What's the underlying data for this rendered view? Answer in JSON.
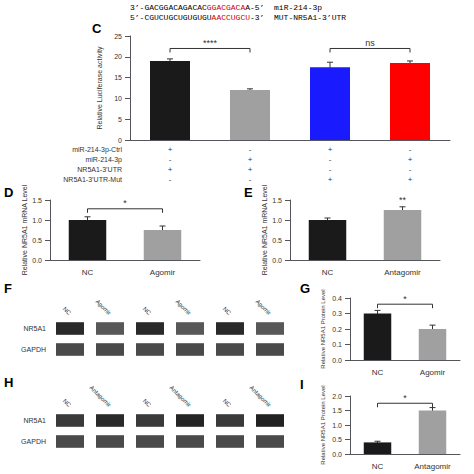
{
  "chart_data": [
    {
      "type": "bar",
      "title": "C",
      "ylabel": "Relative Luciferase activity",
      "categories": [
        null,
        null,
        null,
        null
      ],
      "values": [
        19.0,
        12.0,
        17.5,
        18.5
      ],
      "errors": [
        0.5,
        0.3,
        1.2,
        0.5
      ],
      "colors": [
        "#1a1a1a",
        "#a0a0a0",
        "#1a1aff",
        "#ff0000"
      ],
      "ylim": [
        0,
        25
      ],
      "yticks": [
        0,
        5,
        10,
        15,
        20,
        25
      ],
      "grid": false,
      "tick_labels": "y",
      "annotations": [
        {
          "text": "****",
          "from": 0,
          "to": 1,
          "y": 22.0
        },
        {
          "text": "ns",
          "from": 2,
          "to": 3,
          "y": 22.0
        }
      ],
      "table_rows": [
        [
          "miR-214-3p-Ctrl",
          "+",
          "-",
          "+",
          "-"
        ],
        [
          "miR-214-3p",
          "-",
          "+",
          "-",
          "+"
        ],
        [
          "NR5A1-3’UTR",
          "+",
          "+",
          "-",
          "-"
        ],
        [
          "NR5A1-3’UTR-Mut",
          "-",
          "-",
          "+",
          "+"
        ]
      ],
      "sequence_lines": [
        [
          {
            "text": "3’-GACGGACAGACAC",
            "color": "#000000"
          },
          {
            "text": "GGACGACA",
            "color": "#cc0000"
          },
          {
            "text": "A-5’  miR-214-3p",
            "color": "#000000"
          }
        ],
        [
          {
            "text": "5’-CGUCUGCUGUGUGU",
            "color": "#000000"
          },
          {
            "text": "AACCUGCU",
            "color": "#cc0000"
          },
          {
            "text": "-3’  MUT-NR5A1-3’UTR",
            "color": "#000000"
          }
        ]
      ]
    },
    {
      "type": "bar",
      "title": "D",
      "ylabel": "Relative NR5A1 mRNA Level",
      "categories": [
        "NC",
        "Agomir"
      ],
      "values": [
        1.0,
        0.75
      ],
      "errors": [
        0.08,
        0.1
      ],
      "colors": [
        "#1a1a1a",
        "#a0a0a0"
      ],
      "ylim": [
        0,
        1.5
      ],
      "yticks": [
        {
          "value": 0.0,
          "label": "0.0"
        },
        0.5,
        {
          "value": 1.0,
          "label": "1.0"
        },
        1.5
      ],
      "grid": false,
      "annotations": [
        {
          "text": "*",
          "from": 0,
          "to": 1,
          "y": 1.28
        }
      ]
    },
    {
      "type": "bar",
      "title": "E",
      "ylabel": "Relative NR5A1 mRNA Level",
      "categories": [
        "NC",
        "Antagomir"
      ],
      "values": [
        1.0,
        1.25
      ],
      "errors": [
        0.05,
        0.08
      ],
      "colors": [
        "#1a1a1a",
        "#a0a0a0"
      ],
      "ylim": [
        0,
        1.5
      ],
      "yticks": [
        {
          "value": 0.0,
          "label": "0.0"
        },
        0.5,
        {
          "value": 1.0,
          "label": "1.0"
        },
        1.5
      ],
      "grid": false,
      "annotations": [
        {
          "text": "**",
          "bar": 1
        }
      ]
    },
    {
      "type": "blot",
      "title": "F",
      "categories": [
        "NC",
        "Agomir",
        "NC",
        "Agomir",
        "NC",
        "Agomir"
      ],
      "series": [
        {
          "name": "NR5A1",
          "colors": [
            "#2a2a2a",
            "#585858",
            "#2a2a2a",
            "#585858",
            "#2a2a2a",
            "#585858"
          ]
        },
        {
          "name": "GAPDH",
          "colors": [
            "#4a4a4a",
            "#4a4a4a",
            "#4a4a4a",
            "#4a4a4a",
            "#4a4a4a",
            "#4a4a4a"
          ]
        }
      ]
    },
    {
      "type": "bar",
      "title": "G",
      "ylabel": "Relative NR5A1 Protein Level",
      "categories": [
        "NC",
        "Agomir"
      ],
      "values": [
        0.3,
        0.2
      ],
      "errors": [
        0.02,
        0.025
      ],
      "colors": [
        "#1a1a1a",
        "#a0a0a0"
      ],
      "ylim": [
        0,
        0.4
      ],
      "yticks": [
        {
          "value": 0.0,
          "label": "0.0"
        },
        0.1,
        0.2,
        0.3,
        0.4
      ],
      "grid": false,
      "annotations": [
        {
          "text": "*",
          "from": 0,
          "to": 1,
          "y": 0.36
        }
      ]
    },
    {
      "type": "blot",
      "title": "H",
      "categories": [
        "NC",
        "Antagomir",
        "NC",
        "Antagomir",
        "NC",
        "Antagomir"
      ],
      "series": [
        {
          "name": "NR5A1",
          "colors": [
            "#3a3a3a",
            "#2a2a2a",
            "#3a3a3a",
            "#252525",
            "#3a3a3a",
            "#222222"
          ]
        },
        {
          "name": "GAPDH",
          "colors": [
            "#4a4a4a",
            "#4a4a4a",
            "#4a4a4a",
            "#4a4a4a",
            "#4a4a4a",
            "#4a4a4a"
          ]
        }
      ]
    },
    {
      "type": "bar",
      "title": "I",
      "ylabel": "Relative NR5A1 Protein Level",
      "categories": [
        "NC",
        "Antagomir"
      ],
      "values": [
        0.4,
        1.5
      ],
      "errors": [
        0.04,
        0.1
      ],
      "colors": [
        "#1a1a1a",
        "#a0a0a0"
      ],
      "ylim": [
        0,
        2.0
      ],
      "yticks": [
        {
          "value": 0.0,
          "label": "0.0"
        },
        0.5,
        {
          "value": 1.0,
          "label": "1.0"
        },
        1.5,
        {
          "value": 2.0,
          "label": "2.0"
        }
      ],
      "grid": false,
      "annotations": [
        {
          "text": "*",
          "from": 0,
          "to": 1,
          "y": 1.75
        }
      ]
    }
  ]
}
